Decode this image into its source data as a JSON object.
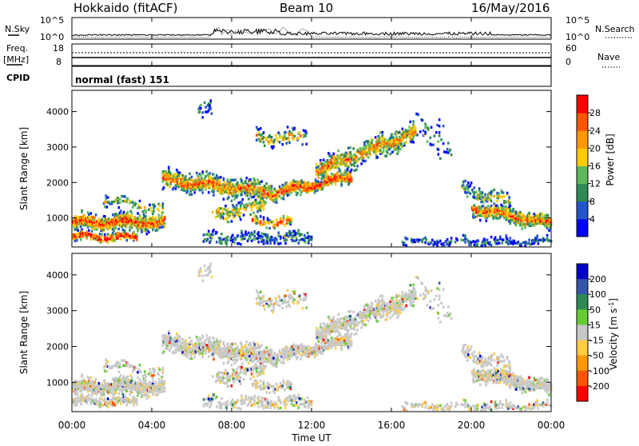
{
  "header": {
    "station": "Hokkaido (fitACF)",
    "beam": "Beam 10",
    "date": "16/May/2016"
  },
  "top_panel": {
    "left_label": "N.Sky",
    "left_ticks": [
      "10^5",
      "10^0"
    ],
    "right_label": "N.Search",
    "right_ticks": [
      "10^5",
      "10^0"
    ]
  },
  "freq_panel": {
    "left_label_line1": "Freq.",
    "left_label_line2": "[MHz]",
    "left_ticks": [
      "18",
      "8"
    ],
    "right_label": "Nave",
    "right_ticks": [
      "60",
      "0"
    ]
  },
  "cpid": {
    "label": "CPID",
    "value": "normal (fast) 151"
  },
  "chart_data": [
    {
      "type": "heatmap",
      "quantity": "power",
      "ylabel": "Slant Range [km]",
      "xlabel": "",
      "ylim": [
        180,
        4600
      ],
      "yticks": [
        1000,
        2000,
        3000,
        4000
      ],
      "colorbar": {
        "label": "Power [dB]",
        "ticks": [
          4,
          8,
          12,
          16,
          20,
          24,
          28
        ],
        "range": [
          0,
          32
        ]
      }
    },
    {
      "type": "heatmap",
      "quantity": "velocity",
      "ylabel": "Slant Range [km]",
      "xlabel": "Time UT",
      "ylim": [
        180,
        4600
      ],
      "yticks": [
        1000,
        2000,
        3000,
        4000
      ],
      "xticks": [
        "00:00",
        "04:00",
        "08:00",
        "12:00",
        "16:00",
        "20:00",
        "00:00"
      ],
      "colorbar": {
        "label": "Velocity [m s^-1]",
        "ticks": [
          200,
          100,
          50,
          15,
          -15,
          -50,
          -100,
          -200
        ]
      }
    }
  ],
  "colors": {
    "power": [
      "#0000ff",
      "#2255cc",
      "#2e8b57",
      "#5cb85c",
      "#ffcc00",
      "#ff9900",
      "#ff5500",
      "#ff0000"
    ],
    "velocity": [
      "#0000cc",
      "#3355aa",
      "#2e8b57",
      "#66cc33",
      "#c8c8c8",
      "#ffcc44",
      "#ff9900",
      "#ff5500",
      "#ff0000"
    ]
  }
}
